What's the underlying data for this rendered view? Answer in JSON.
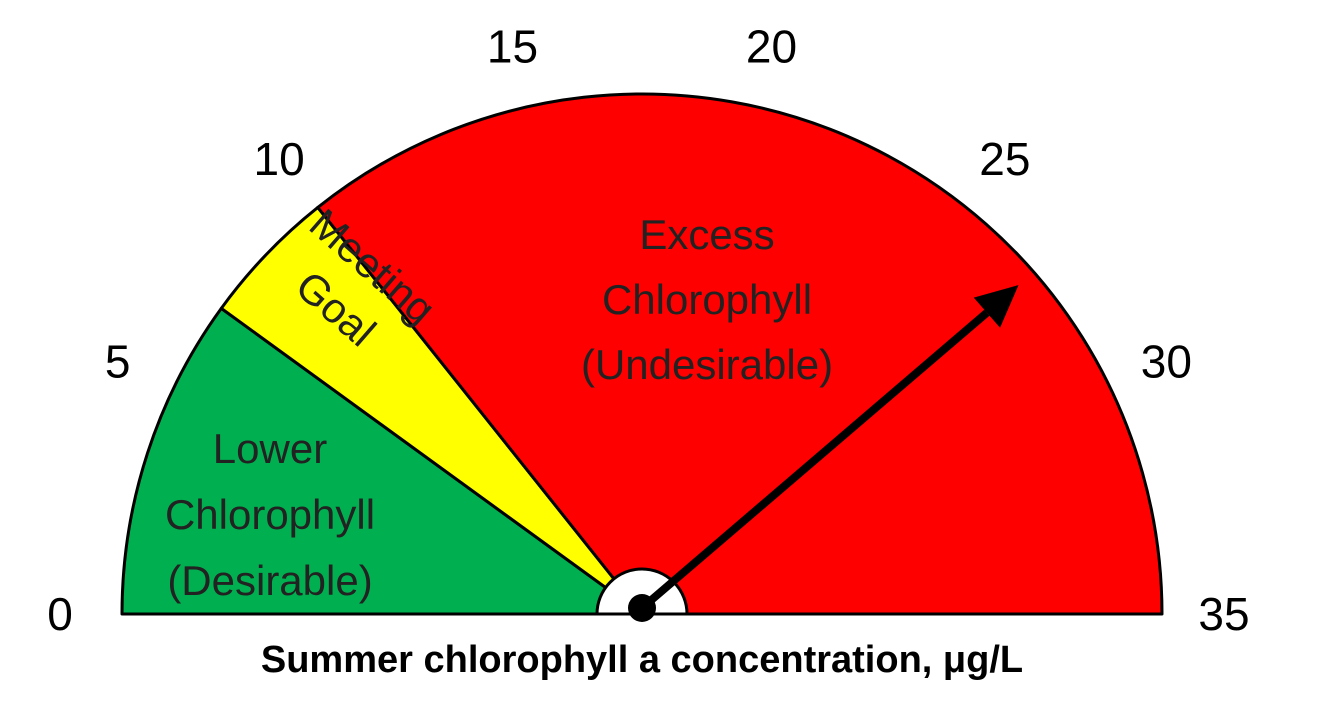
{
  "chart_data": {
    "type": "gauge",
    "xlabel": "Summer chlorophyll a concentration, μg/L",
    "xlim": [
      0,
      35
    ],
    "xticks": [
      0,
      5,
      10,
      15,
      20,
      25,
      30,
      35
    ],
    "bands": [
      {
        "from": 0,
        "to": 7,
        "color": "#00b050",
        "label": [
          "Lower",
          "Chlorophyll",
          "(Desirable)"
        ]
      },
      {
        "from": 7,
        "to": 10,
        "color": "#ffff00",
        "label": [
          "Meeting",
          "Goal"
        ]
      },
      {
        "from": 10,
        "to": 35,
        "color": "#ff0000",
        "label": [
          "Excess",
          "Chlorophyll",
          "(Undesirable)"
        ]
      }
    ],
    "value": 27,
    "needle_color": "#000000"
  }
}
